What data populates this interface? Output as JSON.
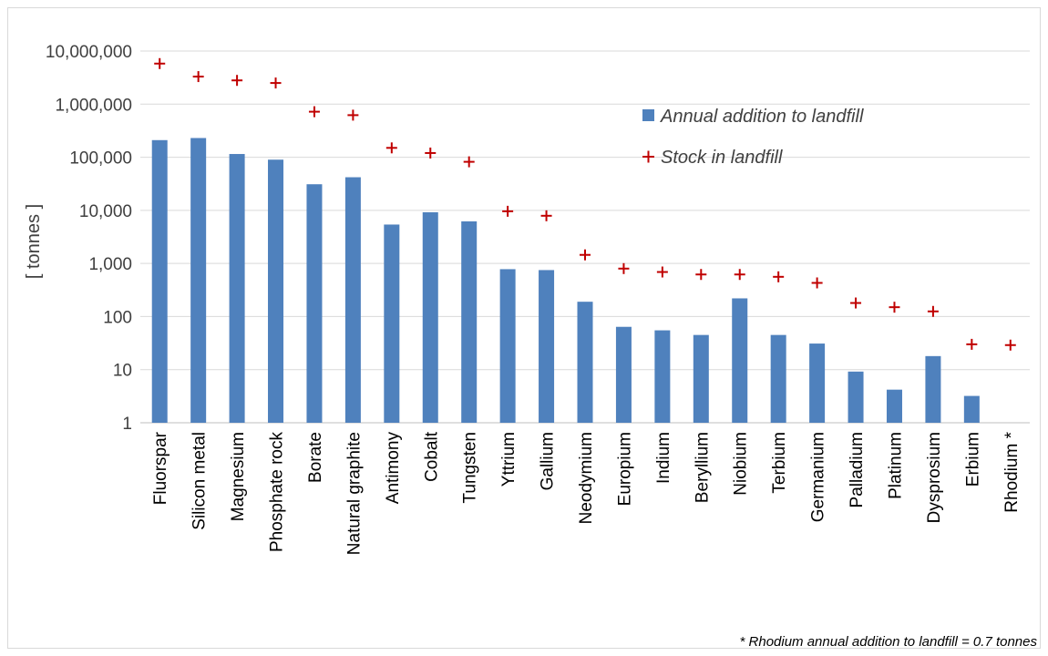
{
  "chart_data": {
    "type": "bar",
    "scale": "log",
    "ylim": [
      1,
      10000000
    ],
    "ylabel": "[ tonnes ]",
    "y_ticks": [
      {
        "value": 1,
        "label": "1"
      },
      {
        "value": 10,
        "label": "10"
      },
      {
        "value": 100,
        "label": "100"
      },
      {
        "value": 1000,
        "label": "1,000"
      },
      {
        "value": 10000,
        "label": "10,000"
      },
      {
        "value": 100000,
        "label": "100,000"
      },
      {
        "value": 1000000,
        "label": "1,000,000"
      },
      {
        "value": 10000000,
        "label": "10,000,000"
      }
    ],
    "grid": true,
    "legend_position": "top-right",
    "categories": [
      "Fluorspar",
      "Silicon metal",
      "Magnesium",
      "Phosphate rock",
      "Borate",
      "Natural graphite",
      "Antimony",
      "Cobalt",
      "Tungsten",
      "Yttrium",
      "Gallium",
      "Neodymium",
      "Europium",
      "Indium",
      "Beryllium",
      "Niobium",
      "Terbium",
      "Germanium",
      "Palladium",
      "Platinum",
      "Dysprosium",
      "Erbium",
      "Rhodium *"
    ],
    "series": [
      {
        "name": "Annual addition to landfill",
        "kind": "bar",
        "color": "#4f81bd",
        "values": [
          210000,
          230000,
          115000,
          90000,
          31000,
          42000,
          5400,
          9200,
          6200,
          780,
          750,
          190,
          64,
          55,
          45,
          220,
          45,
          31,
          9.2,
          4.2,
          18,
          3.2,
          0.7
        ]
      },
      {
        "name": "Stock in landfill",
        "kind": "marker",
        "color": "#c00000",
        "values": [
          5800000,
          3300000,
          2800000,
          2500000,
          720000,
          620000,
          150000,
          120000,
          82000,
          9600,
          7900,
          1450,
          800,
          690,
          620,
          620,
          560,
          430,
          180,
          150,
          125,
          30,
          29
        ]
      }
    ],
    "footnote": "* Rhodium annual addition to landfill = 0.7 tonnes"
  }
}
